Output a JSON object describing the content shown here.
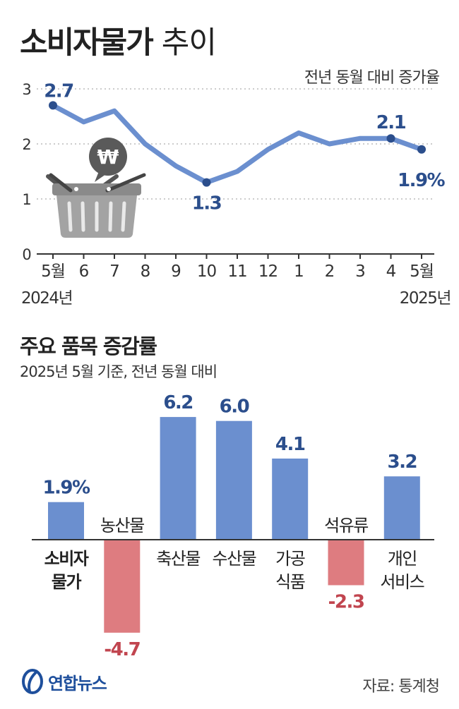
{
  "title": {
    "bold": "소비자물가",
    "light": "추이"
  },
  "source": "자료: 통계청",
  "logo_text": "연합뉴스",
  "colors": {
    "line": "#6b8fcf",
    "marker": "#2b4e8c",
    "positive": "#6b8fcf",
    "negative": "#de7c80",
    "positive_label": "#2b4e8c",
    "negative_label": "#c1454f"
  },
  "chart_data": [
    {
      "type": "line",
      "title": "소비자물가 추이",
      "subtitle": "전년 동월 대비 증가율",
      "x": [
        "5월",
        "6",
        "7",
        "8",
        "9",
        "10",
        "11",
        "12",
        "1",
        "2",
        "3",
        "4",
        "5월"
      ],
      "x_year_labels": [
        "2024년",
        "2025년"
      ],
      "values": [
        2.7,
        2.4,
        2.6,
        2.0,
        1.6,
        1.3,
        1.5,
        1.9,
        2.2,
        2.0,
        2.1,
        2.1,
        1.9
      ],
      "ylim": [
        0,
        3
      ],
      "yticks": [
        "0",
        "1",
        "2",
        "3"
      ],
      "grid": "y-dotted",
      "markers": [
        {
          "index": 0,
          "label": "2.7"
        },
        {
          "index": 5,
          "label": "1.3"
        },
        {
          "index": 11,
          "label": "2.1"
        },
        {
          "index": 12,
          "label": "1.9%"
        }
      ]
    },
    {
      "type": "bar",
      "title": "주요 품목 증감률",
      "subtitle": "2025년 5월 기준, 전년 동월 대비",
      "categories": [
        "소비자 물가",
        "농산물",
        "축산물",
        "수산물",
        "가공 식품",
        "석유류",
        "개인 서비스"
      ],
      "values": [
        1.9,
        -4.7,
        6.2,
        6.0,
        4.1,
        -2.3,
        3.2
      ],
      "value_labels": [
        "1.9%",
        "-4.7",
        "6.2",
        "6.0",
        "4.1",
        "-2.3",
        "3.2"
      ]
    }
  ]
}
